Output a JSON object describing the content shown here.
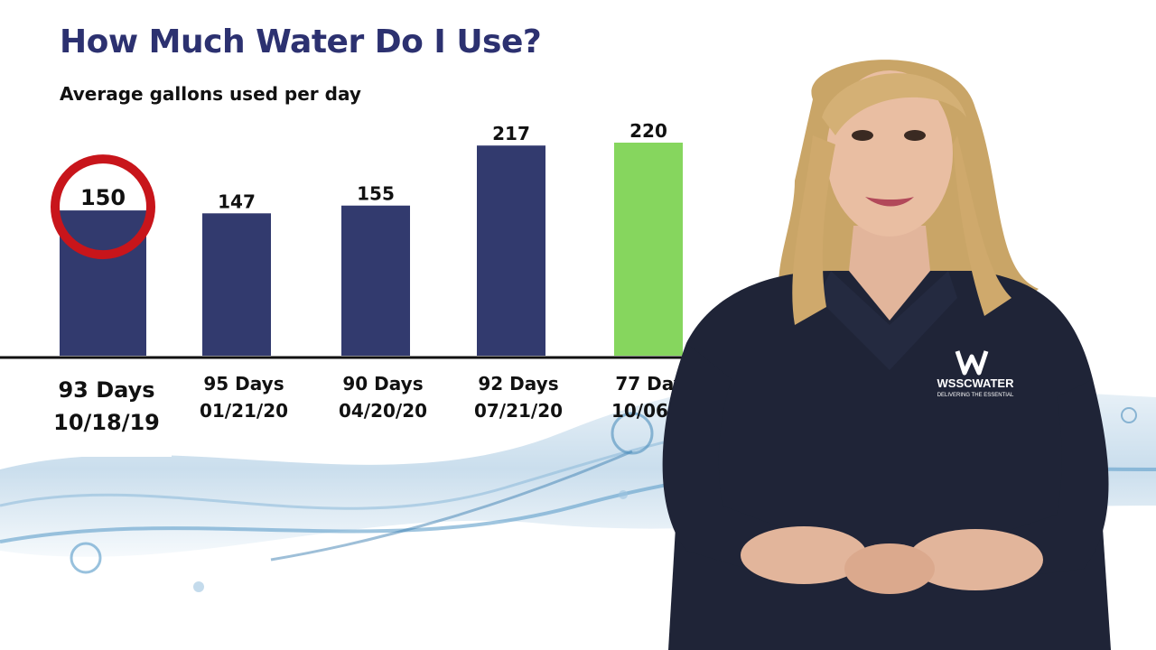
{
  "chart_data": {
    "type": "bar",
    "title": "How Much Water Do I Use?",
    "subtitle": "Average gallons used per day",
    "categories": [
      {
        "days": "93 Days",
        "date": "10/18/19"
      },
      {
        "days": "95 Days",
        "date": "01/21/20"
      },
      {
        "days": "90 Days",
        "date": "04/20/20"
      },
      {
        "days": "92 Days",
        "date": "07/21/20"
      },
      {
        "days": "77 Days",
        "date": "10/06/20"
      }
    ],
    "values": [
      150,
      147,
      155,
      217,
      220
    ],
    "value_labels": [
      "150",
      "147",
      "155",
      "217",
      "220"
    ],
    "highlighted_index": 0,
    "current_index": 4,
    "ylim": [
      0,
      220
    ],
    "grid": false,
    "legend": "none",
    "colors": {
      "bar": "#323a6e",
      "current_bar": "#86d65e",
      "highlight_ring": "#c8151b",
      "title": "#2c3170"
    }
  },
  "logo": {
    "text": "WSSCWATER",
    "tagline": "DELIVERING THE ESSENTIAL"
  }
}
